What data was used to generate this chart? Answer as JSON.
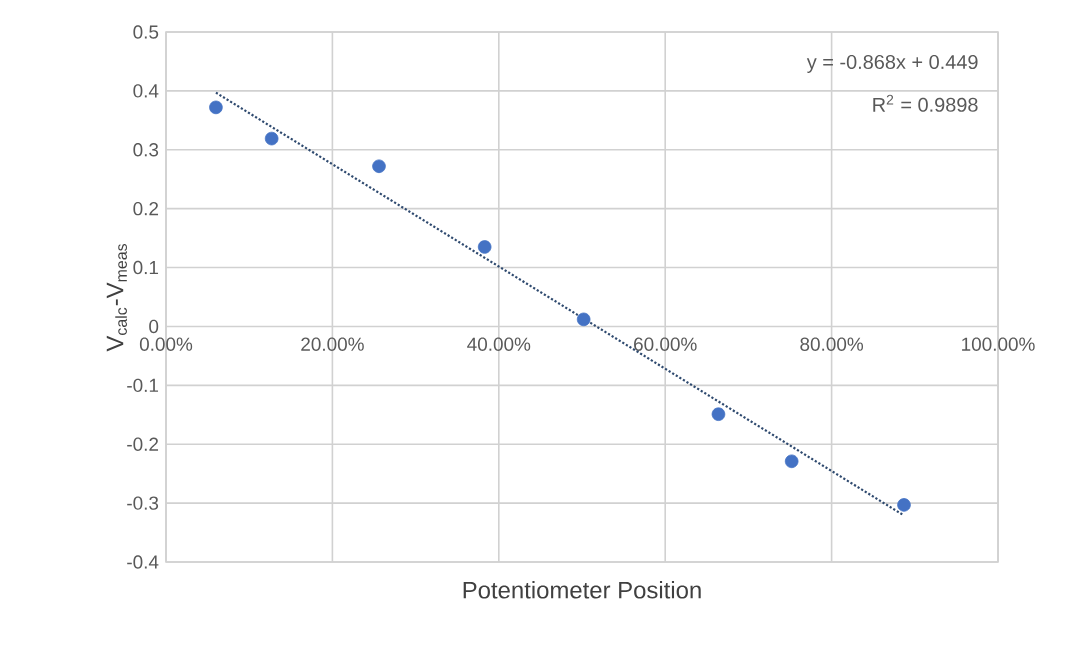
{
  "chart_data": {
    "type": "scatter",
    "xlabel": "Potentiometer Position",
    "ylabel": "V$_{calc}$-V$_{meas}$",
    "annotations": [
      "y = -0.868x + 0.449",
      "R$^{2}$ = 0.9898"
    ],
    "series": [
      {
        "color": "#4472c4",
        "marker": "circle",
        "x": [
          0.06,
          0.127,
          0.256,
          0.383,
          0.502,
          0.664,
          0.752,
          0.887
        ],
        "values": [
          0.372,
          0.319,
          0.272,
          0.135,
          0.012,
          -0.149,
          -0.229,
          -0.303
        ]
      },
      {
        "type": "line",
        "color": "#2f4a6f",
        "line_style": "dotted",
        "marker": "none",
        "x": [
          0.06,
          0.887
        ],
        "values": [
          0.397,
          -0.321
        ]
      }
    ],
    "xlim": [
      0,
      1
    ],
    "ylim": [
      -0.4,
      0.5
    ],
    "xticks": [
      {
        "value": 0,
        "label": "0.00%"
      },
      {
        "value": 0.2,
        "label": "20.00%"
      },
      {
        "value": 0.4,
        "label": "40.00%"
      },
      {
        "value": 0.6,
        "label": "60.00%"
      },
      {
        "value": 0.8,
        "label": "80.00%"
      },
      {
        "value": 1,
        "label": "100.00%"
      }
    ],
    "yticks": [
      -0.4,
      -0.3,
      -0.2,
      -0.1,
      0,
      0.1,
      0.2,
      0.3,
      0.4,
      0.5
    ],
    "grid": true
  }
}
